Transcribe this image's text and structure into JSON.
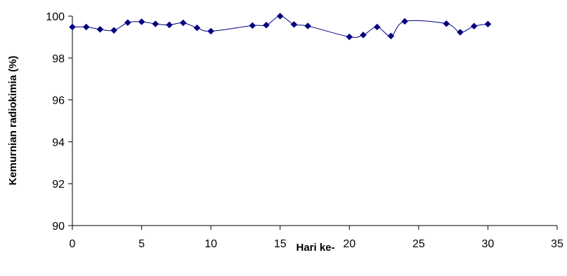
{
  "chart_data": {
    "type": "scatter",
    "title": "",
    "xlabel": "Hari ke-",
    "ylabel": "Kemurnian radiokimia (%)",
    "xlim": [
      0,
      35
    ],
    "ylim": [
      90,
      100
    ],
    "xticks": [
      "0",
      "5",
      "10",
      "15",
      "20",
      "25",
      "30",
      "35"
    ],
    "yticks": [
      "90",
      "92",
      "94",
      "96",
      "98",
      "100"
    ],
    "grid": false,
    "legend": "none",
    "line_style": "smooth-line-with-diamond-markers",
    "series": [
      {
        "color": "#000080",
        "x": [
          0,
          1,
          2,
          3,
          4,
          5,
          6,
          7,
          8,
          9,
          10,
          13,
          14,
          15,
          16,
          17,
          20,
          21,
          22,
          23,
          24,
          27,
          28,
          29,
          30
        ],
        "y": [
          99.48,
          99.48,
          99.37,
          99.32,
          99.69,
          99.73,
          99.63,
          99.58,
          99.68,
          99.44,
          99.28,
          99.55,
          99.57,
          100.0,
          99.6,
          99.53,
          99.01,
          99.1,
          99.48,
          99.05,
          99.75,
          99.64,
          99.23,
          99.52,
          99.62
        ]
      }
    ]
  }
}
